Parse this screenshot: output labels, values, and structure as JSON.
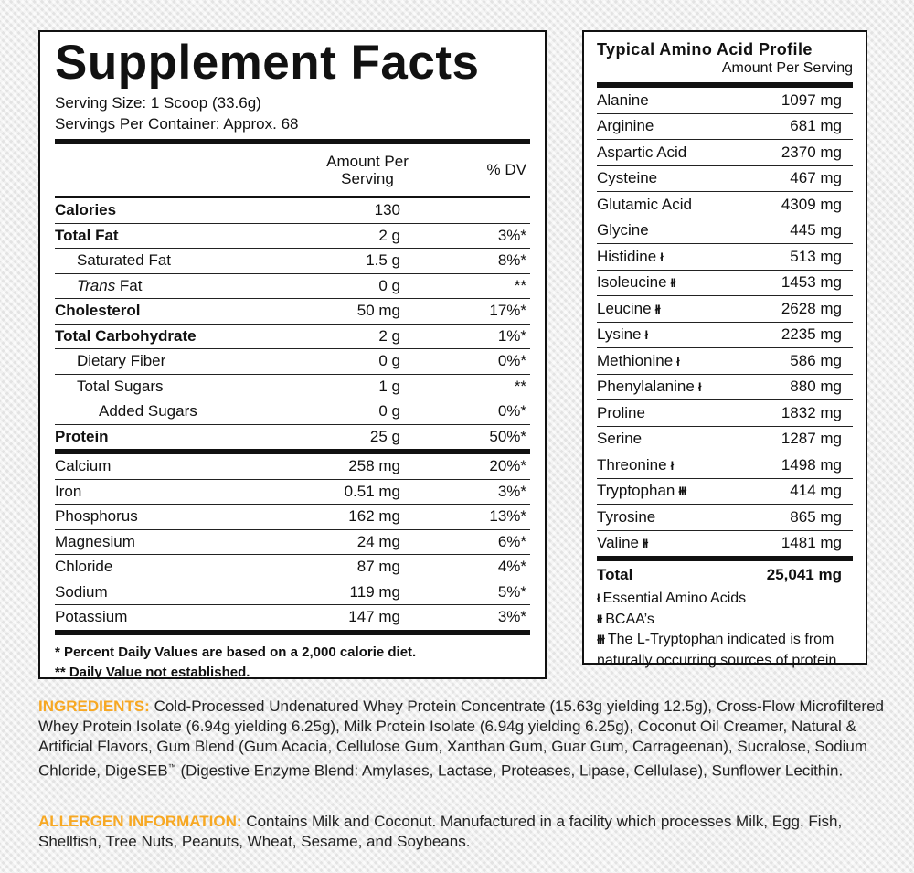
{
  "supplement_facts": {
    "title": "Supplement Facts",
    "serving_size": "Serving Size: 1 Scoop (33.6g)",
    "servings_per_container": "Servings Per Container: Approx. 68",
    "col_amount_line1": "Amount Per",
    "col_amount_line2": "Serving",
    "col_dv": "% DV",
    "rows": [
      {
        "name": "Calories",
        "amount": "130",
        "dv": ""
      },
      {
        "name": "Total Fat",
        "amount": "2 g",
        "dv": "3%*"
      },
      {
        "name": "Saturated Fat",
        "amount": "1.5 g",
        "dv": "8%*"
      },
      {
        "name_italic": "Trans",
        "name_rest": " Fat",
        "amount": "0 g",
        "dv": "**"
      },
      {
        "name": "Cholesterol",
        "amount": "50 mg",
        "dv": "17%*"
      },
      {
        "name": "Total Carbohydrate",
        "amount": "2 g",
        "dv": "1%*"
      },
      {
        "name": "Dietary Fiber",
        "amount": "0 g",
        "dv": "0%*"
      },
      {
        "name": "Total Sugars",
        "amount": "1 g",
        "dv": "**"
      },
      {
        "name": "Added Sugars",
        "amount": "0 g",
        "dv": "0%*"
      },
      {
        "name": "Protein",
        "amount": "25 g",
        "dv": "50%*"
      }
    ],
    "minerals": [
      {
        "name": "Calcium",
        "amount": "258 mg",
        "dv": "20%*"
      },
      {
        "name": "Iron",
        "amount": "0.51 mg",
        "dv": "3%*"
      },
      {
        "name": "Phosphorus",
        "amount": "162 mg",
        "dv": "13%*"
      },
      {
        "name": "Magnesium",
        "amount": "24 mg",
        "dv": "6%*"
      },
      {
        "name": "Chloride",
        "amount": "87 mg",
        "dv": "4%*"
      },
      {
        "name": "Sodium",
        "amount": "119 mg",
        "dv": "5%*"
      },
      {
        "name": "Potassium",
        "amount": "147 mg",
        "dv": "3%*"
      }
    ],
    "footnote1": "* Percent Daily Values are based on a 2,000 calorie diet.",
    "footnote2": "** Daily Value not established."
  },
  "amino_profile": {
    "title": "Typical Amino Acid Profile",
    "subtitle": "Amount Per Serving",
    "rows": [
      {
        "name": "Alanine",
        "mark": "",
        "value": "1097 mg"
      },
      {
        "name": "Arginine",
        "mark": "",
        "value": "681 mg"
      },
      {
        "name": "Aspartic Acid",
        "mark": "",
        "value": "2370 mg"
      },
      {
        "name": "Cysteine",
        "mark": "",
        "value": "467 mg"
      },
      {
        "name": "Glutamic Acid",
        "mark": "",
        "value": "4309 mg"
      },
      {
        "name": "Glycine",
        "mark": "",
        "value": "445 mg"
      },
      {
        "name": "Histidine",
        "mark": "ł",
        "value": "513 mg"
      },
      {
        "name": "Isoleucine",
        "mark": "łł",
        "value": "1453 mg"
      },
      {
        "name": "Leucine",
        "mark": "łł",
        "value": "2628 mg"
      },
      {
        "name": "Lysine",
        "mark": "ł",
        "value": "2235 mg"
      },
      {
        "name": "Methionine",
        "mark": "ł",
        "value": "586 mg"
      },
      {
        "name": "Phenylalanine",
        "mark": "ł",
        "value": "880 mg"
      },
      {
        "name": "Proline",
        "mark": "",
        "value": "1832 mg"
      },
      {
        "name": "Serine",
        "mark": "",
        "value": "1287 mg"
      },
      {
        "name": "Threonine",
        "mark": "ł",
        "value": "1498 mg"
      },
      {
        "name": "Tryptophan",
        "mark": "łłł",
        "value": "414 mg"
      },
      {
        "name": "Tyrosine",
        "mark": "",
        "value": "865 mg"
      },
      {
        "name": "Valine",
        "mark": "łł",
        "value": "1481 mg"
      }
    ],
    "total_label": "Total",
    "total_value": "25,041 mg",
    "notes": [
      {
        "mark": "ł",
        "text": "Essential Amino Acids"
      },
      {
        "mark": "łł",
        "text": "BCAA’s"
      },
      {
        "mark": "łłł",
        "text": "The L-Tryptophan indicated is from naturally occurring sources of protein."
      }
    ]
  },
  "ingredients": {
    "label": "INGREDIENTS:",
    "text_before_tm": " Cold-Processed Undenatured Whey Protein Concentrate (15.63g yielding 12.5g), Cross-Flow Microfiltered Whey Protein Isolate (6.94g yielding 6.25g), Milk Protein Isolate (6.94g yielding 6.25g), Coconut Oil Creamer, Natural & Artificial Flavors, Gum Blend (Gum Acacia, Cellulose Gum, Xanthan Gum, Guar Gum, Carrageenan), Sucralose, Sodium Chloride, DigeSEB",
    "tm": "™",
    "text_after_tm": " (Digestive Enzyme Blend: Amylases, Lactase, Proteases, Lipase, Cellulase), Sunflower Lecithin."
  },
  "allergens": {
    "label": "ALLERGEN INFORMATION:",
    "text": " Contains Milk and Coconut. Manufactured in a facility which processes Milk, Egg, Fish, Shellfish, Tree Nuts, Peanuts, Wheat, Sesame, and Soybeans."
  },
  "colors": {
    "accent": "#f7a823",
    "text": "#111111",
    "panel": "#ffffff"
  }
}
